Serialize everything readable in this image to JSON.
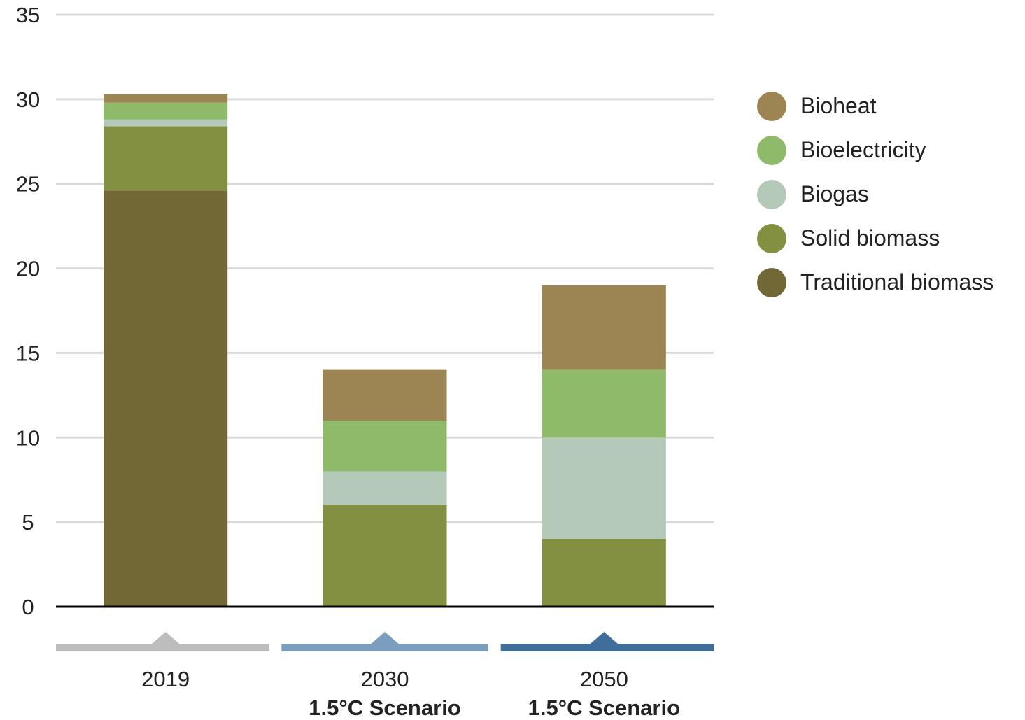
{
  "chart_data": {
    "type": "bar",
    "stacked": true,
    "categories": [
      "2019",
      "2030",
      "2050"
    ],
    "category_sublabels": [
      "",
      "1.5°C Scenario",
      "1.5°C Scenario"
    ],
    "category_marker_colors": [
      "#bdbdbd",
      "#7c9ebe",
      "#3f6e9b"
    ],
    "ylim": [
      0,
      35
    ],
    "yticks": [
      0,
      5,
      10,
      15,
      20,
      25,
      30,
      35
    ],
    "grid": true,
    "legend_position": "right",
    "series": [
      {
        "name": "Traditional biomass",
        "color": "#716835",
        "values": [
          24.6,
          0,
          0
        ]
      },
      {
        "name": "Solid biomass",
        "color": "#838f41",
        "values": [
          3.8,
          6,
          4
        ]
      },
      {
        "name": "Biogas",
        "color": "#b5c9b8",
        "values": [
          0.4,
          2,
          6
        ]
      },
      {
        "name": "Bioelectricity",
        "color": "#8fba6a",
        "values": [
          1.0,
          3,
          4
        ]
      },
      {
        "name": "Bioheat",
        "color": "#9c8552",
        "values": [
          0.5,
          3,
          5
        ]
      }
    ]
  }
}
